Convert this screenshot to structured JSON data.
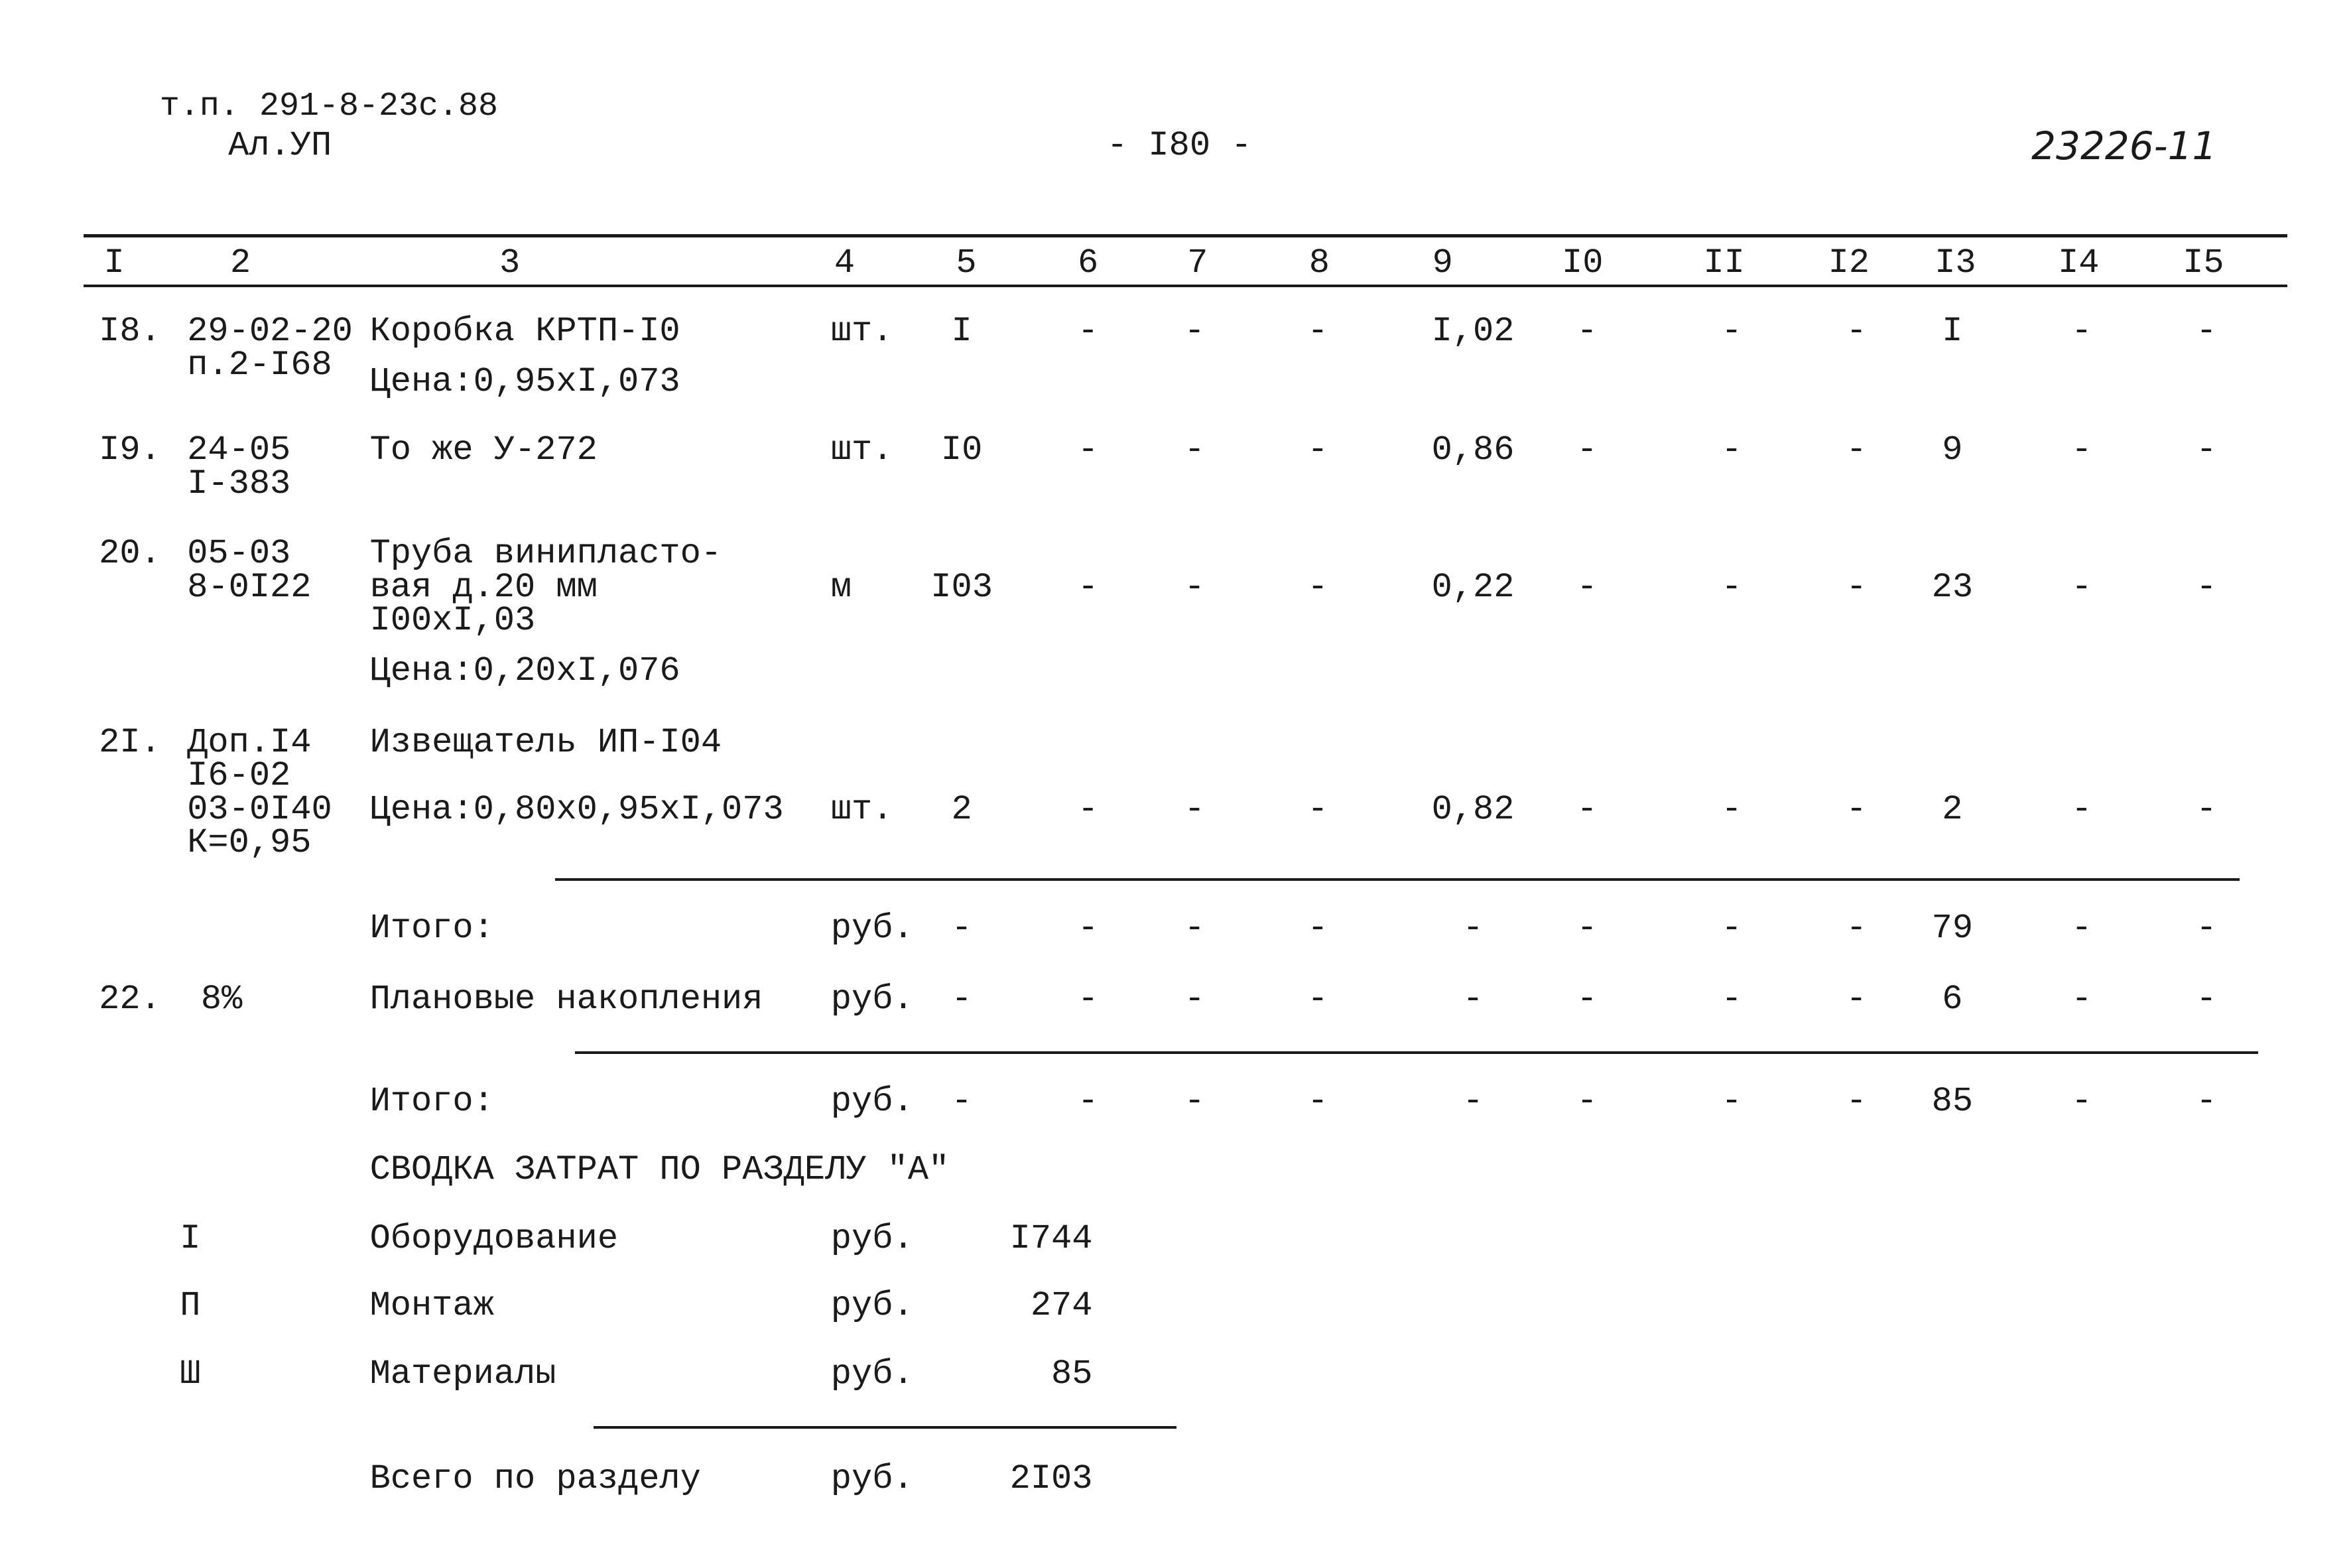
{
  "header": {
    "doc_code": "т.п. 291-8-23с.88",
    "album": "Ал.УП",
    "page": "- I80 -",
    "stamp": "23226-11"
  },
  "table": {
    "columns": [
      "I",
      "2",
      "3",
      "4",
      "5",
      "6",
      "7",
      "8",
      "9",
      "I0",
      "II",
      "I2",
      "I3",
      "I4",
      "I5"
    ],
    "rows": [
      {
        "num": "I8.",
        "code": [
          "29-02-20",
          "п.2-I68"
        ],
        "name": [
          "Коробка КРТП-I0"
        ],
        "price": "Цена:0,95хI,073",
        "cells": [
          "шт.",
          "I",
          "-",
          "-",
          "-",
          "I,02",
          "-",
          "-",
          "-",
          "I",
          "-",
          "-"
        ]
      },
      {
        "num": "I9.",
        "code": [
          "24-05",
          "I-383"
        ],
        "name": [
          "То же У-272"
        ],
        "cells": [
          "шт.",
          "I0",
          "-",
          "-",
          "-",
          "0,86",
          "-",
          "-",
          "-",
          "9",
          "-",
          "-"
        ]
      },
      {
        "num": "20.",
        "code": [
          "05-03",
          "8-0I22"
        ],
        "name": [
          "Труба винипласто-",
          "вая д.20 мм",
          "I00хI,03"
        ],
        "price": "Цена:0,20хI,076",
        "cells": [
          "м",
          "I03",
          "-",
          "-",
          "-",
          "0,22",
          "-",
          "-",
          "-",
          "23",
          "-",
          "-"
        ]
      },
      {
        "num": "2I.",
        "code": [
          "Доп.I4",
          "I6-02",
          "03-0I40",
          "К=0,95"
        ],
        "name": [
          "Извещатель ИП-I04"
        ],
        "price": "Цена:0,80х0,95хI,073",
        "cells": [
          "шт.",
          "2",
          "-",
          "-",
          "-",
          "0,82",
          "-",
          "-",
          "-",
          "2",
          "-",
          "-"
        ]
      }
    ],
    "totals": [
      {
        "name": "Итого:",
        "cells": [
          "руб.",
          "-",
          "-",
          "-",
          "-",
          "-",
          "-",
          "-",
          "-",
          "79",
          "-",
          "-"
        ]
      },
      {
        "num": "22.",
        "code": "8%",
        "name": "Плановые накопления",
        "cells": [
          "руб.",
          "-",
          "-",
          "-",
          "-",
          "-",
          "-",
          "-",
          "-",
          "6",
          "-",
          "-"
        ]
      },
      {
        "name": "Итого:",
        "cells": [
          "руб.",
          "-",
          "-",
          "-",
          "-",
          "-",
          "-",
          "-",
          "-",
          "85",
          "-",
          "-"
        ]
      }
    ]
  },
  "summary": {
    "title": "СВОДКА ЗАТРАТ ПО РАЗДЕЛУ \"А\"",
    "items": [
      {
        "num": "I",
        "name": "Оборудование",
        "unit": "руб.",
        "value": "I744"
      },
      {
        "num": "П",
        "name": "Монтаж",
        "unit": "руб.",
        "value": "274"
      },
      {
        "num": "Ш",
        "name": "Материалы",
        "unit": "руб.",
        "value": "85"
      }
    ],
    "total": {
      "name": "Всего по разделу",
      "unit": "руб.",
      "value": "2I03"
    }
  }
}
